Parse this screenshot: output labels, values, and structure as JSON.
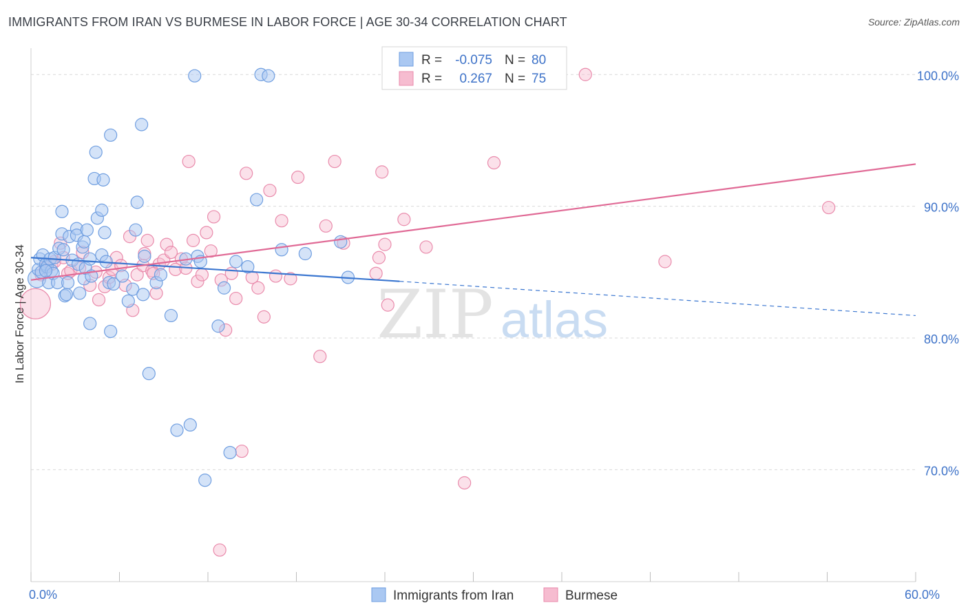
{
  "header": {
    "title": "IMMIGRANTS FROM IRAN VS BURMESE IN LABOR FORCE | AGE 30-34 CORRELATION CHART",
    "source": "Source: ZipAtlas.com"
  },
  "watermark": {
    "zip": "ZIP",
    "atlas": "atlas"
  },
  "colors": {
    "blue_fill": "#aac8f2",
    "blue_stroke": "#6f9ee0",
    "blue_line": "#3a76d0",
    "pink_fill": "#f6bcd0",
    "pink_stroke": "#e98aab",
    "pink_line": "#e06995",
    "tick_text": "#3d72c8",
    "grid": "#d9d9d9"
  },
  "chart_data": {
    "type": "scatter",
    "ylabel": "In Labor Force | Age 30-34",
    "xlim": [
      0,
      60
    ],
    "ylim": [
      61.5,
      102
    ],
    "x_tick_labels": [
      {
        "value": 0,
        "label": "0.0%"
      },
      {
        "value": 60,
        "label": "60.0%"
      }
    ],
    "y_tick_labels": [
      {
        "value": 100,
        "label": "100.0%"
      },
      {
        "value": 90,
        "label": "90.0%"
      },
      {
        "value": 80,
        "label": "80.0%"
      },
      {
        "value": 70,
        "label": "70.0%"
      }
    ],
    "legend": {
      "entries": [
        {
          "r_label": "R =",
          "r_value": "-0.075",
          "n_label": "N =",
          "n_value": "80"
        },
        {
          "r_label": "R =",
          "r_value": "0.267",
          "n_label": "N =",
          "n_value": "75"
        }
      ]
    },
    "series": [
      {
        "name": "Immigrants from Iran",
        "color": "#aac8f2",
        "trend": {
          "x0": 0,
          "y0": 86.1,
          "x1": 25,
          "y1": 84.3,
          "dash_x1": 60,
          "dash_y1": 81.7
        },
        "points": [
          [
            0.4,
            84.5
          ],
          [
            0.5,
            85.2
          ],
          [
            0.6,
            86.0
          ],
          [
            0.7,
            85.0
          ],
          [
            0.8,
            86.3
          ],
          [
            1.0,
            85.6
          ],
          [
            1.1,
            85.4
          ],
          [
            1.2,
            84.2
          ],
          [
            1.3,
            86.0
          ],
          [
            1.4,
            85.1
          ],
          [
            1.5,
            84.9
          ],
          [
            1.6,
            86.1
          ],
          [
            1.8,
            84.2
          ],
          [
            1.9,
            86.8
          ],
          [
            2.1,
            89.6
          ],
          [
            2.1,
            87.9
          ],
          [
            2.2,
            86.7
          ],
          [
            2.3,
            83.2
          ],
          [
            2.4,
            83.3
          ],
          [
            2.5,
            84.2
          ],
          [
            2.6,
            87.7
          ],
          [
            2.8,
            85.9
          ],
          [
            3.1,
            88.3
          ],
          [
            3.1,
            87.8
          ],
          [
            3.2,
            85.6
          ],
          [
            3.3,
            83.4
          ],
          [
            3.5,
            86.9
          ],
          [
            3.6,
            87.3
          ],
          [
            3.6,
            84.5
          ],
          [
            3.7,
            85.3
          ],
          [
            3.8,
            88.2
          ],
          [
            4.0,
            86.0
          ],
          [
            4.0,
            81.1
          ],
          [
            4.1,
            84.7
          ],
          [
            4.3,
            92.1
          ],
          [
            4.4,
            94.1
          ],
          [
            4.5,
            89.1
          ],
          [
            4.8,
            86.3
          ],
          [
            4.8,
            89.7
          ],
          [
            4.9,
            92.0
          ],
          [
            5.0,
            88.0
          ],
          [
            5.1,
            85.8
          ],
          [
            5.3,
            84.2
          ],
          [
            5.4,
            95.4
          ],
          [
            5.4,
            80.5
          ],
          [
            5.6,
            84.1
          ],
          [
            6.2,
            84.7
          ],
          [
            6.6,
            82.8
          ],
          [
            6.9,
            83.7
          ],
          [
            7.1,
            88.2
          ],
          [
            7.2,
            90.3
          ],
          [
            7.5,
            96.2
          ],
          [
            7.6,
            83.3
          ],
          [
            7.7,
            86.2
          ],
          [
            8.0,
            77.3
          ],
          [
            8.5,
            84.2
          ],
          [
            8.8,
            84.8
          ],
          [
            9.5,
            81.7
          ],
          [
            9.9,
            73.0
          ],
          [
            10.5,
            86.0
          ],
          [
            10.8,
            73.4
          ],
          [
            11.1,
            99.9
          ],
          [
            11.3,
            86.2
          ],
          [
            11.5,
            85.8
          ],
          [
            11.8,
            69.2
          ],
          [
            12.7,
            80.9
          ],
          [
            13.1,
            83.8
          ],
          [
            13.5,
            71.3
          ],
          [
            13.9,
            85.8
          ],
          [
            14.7,
            85.4
          ],
          [
            15.3,
            90.5
          ],
          [
            15.6,
            100.0
          ],
          [
            16.1,
            99.9
          ],
          [
            17.0,
            86.7
          ],
          [
            18.6,
            86.4
          ],
          [
            21.0,
            87.3
          ],
          [
            21.5,
            84.6
          ],
          [
            24.5,
            99.8
          ],
          [
            26.0,
            99.9
          ],
          [
            1.0,
            85.1
          ]
        ]
      },
      {
        "name": "Burmese",
        "color": "#f6bcd0",
        "trend": {
          "x0": 0,
          "y0": 84.4,
          "x1": 60,
          "y1": 93.2
        },
        "points": [
          [
            0.3,
            82.6
          ],
          [
            0.7,
            84.8
          ],
          [
            1.0,
            85.4
          ],
          [
            1.4,
            85.6
          ],
          [
            1.6,
            85.8
          ],
          [
            2.0,
            87.2
          ],
          [
            2.2,
            86.1
          ],
          [
            2.5,
            84.9
          ],
          [
            2.7,
            85.1
          ],
          [
            3.3,
            85.3
          ],
          [
            3.5,
            86.5
          ],
          [
            4.0,
            84.0
          ],
          [
            4.4,
            85.0
          ],
          [
            4.6,
            82.9
          ],
          [
            5.0,
            83.9
          ],
          [
            5.3,
            84.6
          ],
          [
            5.5,
            85.2
          ],
          [
            5.8,
            86.1
          ],
          [
            6.1,
            85.5
          ],
          [
            6.4,
            84.0
          ],
          [
            6.7,
            87.7
          ],
          [
            6.9,
            82.1
          ],
          [
            7.2,
            84.8
          ],
          [
            7.6,
            85.5
          ],
          [
            7.7,
            86.4
          ],
          [
            7.9,
            87.4
          ],
          [
            8.2,
            85.1
          ],
          [
            8.5,
            83.4
          ],
          [
            8.7,
            85.6
          ],
          [
            9.0,
            85.9
          ],
          [
            9.2,
            87.1
          ],
          [
            9.5,
            86.5
          ],
          [
            9.8,
            85.2
          ],
          [
            10.2,
            86.0
          ],
          [
            10.5,
            85.3
          ],
          [
            10.7,
            93.4
          ],
          [
            11.0,
            87.4
          ],
          [
            11.3,
            84.3
          ],
          [
            11.6,
            84.8
          ],
          [
            11.9,
            88.0
          ],
          [
            12.2,
            86.6
          ],
          [
            12.4,
            89.2
          ],
          [
            12.9,
            84.4
          ],
          [
            13.2,
            80.6
          ],
          [
            13.6,
            84.9
          ],
          [
            13.9,
            83.0
          ],
          [
            14.3,
            71.4
          ],
          [
            14.6,
            92.5
          ],
          [
            15.0,
            84.6
          ],
          [
            15.4,
            83.8
          ],
          [
            15.8,
            81.6
          ],
          [
            16.2,
            91.2
          ],
          [
            16.6,
            84.7
          ],
          [
            17.0,
            88.9
          ],
          [
            17.6,
            84.5
          ],
          [
            18.1,
            92.2
          ],
          [
            19.6,
            78.6
          ],
          [
            20.0,
            88.5
          ],
          [
            20.6,
            93.4
          ],
          [
            21.2,
            87.2
          ],
          [
            23.4,
            84.9
          ],
          [
            23.6,
            86.1
          ],
          [
            23.8,
            92.6
          ],
          [
            24.0,
            87.1
          ],
          [
            24.2,
            82.5
          ],
          [
            25.3,
            89.0
          ],
          [
            26.8,
            86.9
          ],
          [
            29.4,
            69.0
          ],
          [
            31.4,
            93.3
          ],
          [
            33.8,
            99.8
          ],
          [
            37.6,
            100.0
          ],
          [
            43.0,
            85.8
          ],
          [
            54.1,
            89.9
          ],
          [
            12.8,
            63.9
          ],
          [
            8.3,
            84.9
          ]
        ]
      }
    ]
  },
  "bottom_legend": [
    {
      "label": "Immigrants from Iran"
    },
    {
      "label": "Burmese"
    }
  ]
}
